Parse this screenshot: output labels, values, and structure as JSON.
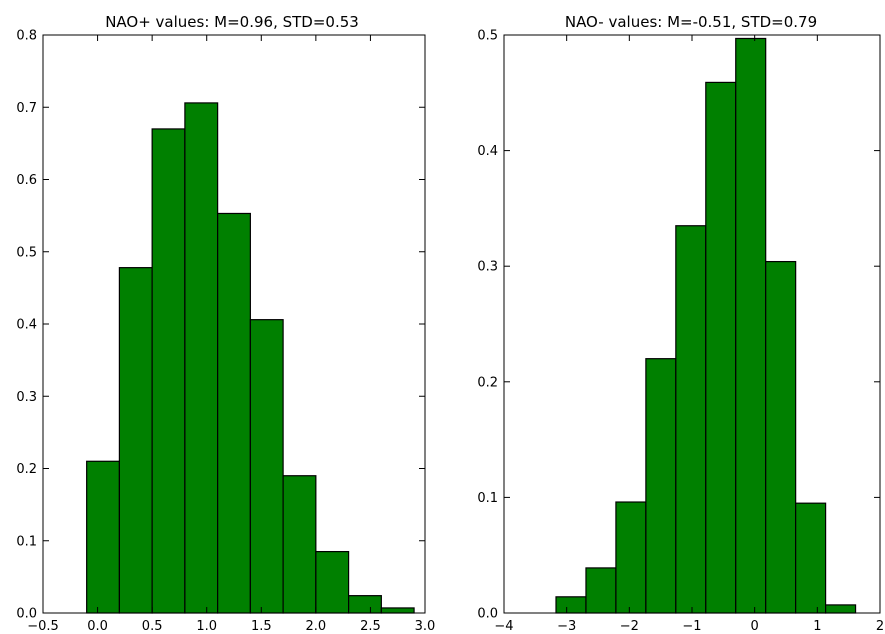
{
  "chart_data": [
    {
      "type": "bar",
      "title": "NAO+ values: M=0.96, STD=0.53",
      "xlim": [
        -0.5,
        3.0
      ],
      "ylim": [
        0.0,
        0.8
      ],
      "xticks": [
        "−0.5",
        "0.0",
        "0.5",
        "1.0",
        "1.5",
        "2.0",
        "2.5",
        "3.0"
      ],
      "yticks": [
        "0.0",
        "0.1",
        "0.2",
        "0.3",
        "0.4",
        "0.5",
        "0.6",
        "0.7",
        "0.8"
      ],
      "bin_edges": [
        -0.1,
        0.2,
        0.5,
        0.8,
        1.1,
        1.4,
        1.7,
        2.0,
        2.3,
        2.6,
        2.9
      ],
      "values": [
        0.21,
        0.478,
        0.67,
        0.706,
        0.553,
        0.406,
        0.19,
        0.085,
        0.024,
        0.007
      ],
      "bar_color": "#008000",
      "edge_color": "#000000"
    },
    {
      "type": "bar",
      "title": "NAO- values: M=-0.51, STD=0.79",
      "xlim": [
        -4,
        2
      ],
      "ylim": [
        0.0,
        0.5
      ],
      "xticks": [
        "−4",
        "−3",
        "−2",
        "−1",
        "0",
        "1",
        "2"
      ],
      "yticks": [
        "0.0",
        "0.1",
        "0.2",
        "0.3",
        "0.4",
        "0.5"
      ],
      "bin_edges": [
        -3.17,
        -2.692,
        -2.214,
        -1.736,
        -1.258,
        -0.78,
        -0.302,
        0.176,
        0.654,
        1.132,
        1.61
      ],
      "values": [
        0.014,
        0.039,
        0.096,
        0.22,
        0.335,
        0.459,
        0.497,
        0.304,
        0.095,
        0.007
      ],
      "bar_color": "#008000",
      "edge_color": "#000000"
    }
  ]
}
